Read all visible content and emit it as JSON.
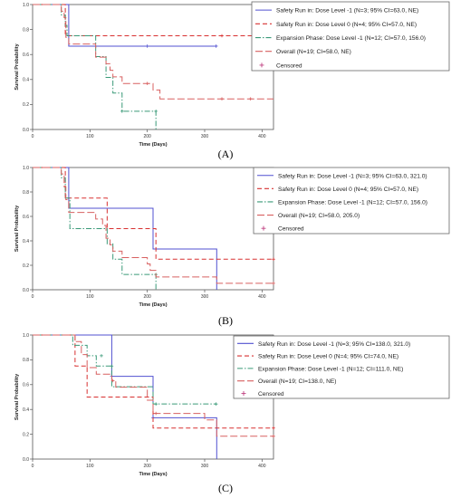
{
  "figure": {
    "panel_labels": [
      "(A)",
      "(B)",
      "(C)"
    ]
  },
  "chart_data": [
    {
      "type": "line",
      "panel": "(A)",
      "xlabel": "Time (Days)",
      "ylabel": "Survival Probability",
      "xlim": [
        0,
        420
      ],
      "ylim": [
        0,
        1.0
      ],
      "xticks": [
        0,
        100,
        200,
        300,
        400
      ],
      "yticks": [
        0.0,
        0.2,
        0.4,
        0.6,
        0.8,
        1.0
      ],
      "grid": false,
      "legend_position": "top-right",
      "censored_label": "Censored",
      "series": [
        {
          "name": "Safety Run in: Dose Level -1 (N=3; 95% CI=63.0, NE)",
          "color": "#5050d0",
          "dash": "solid",
          "steps": [
            [
              0,
              1.0
            ],
            [
              63,
              0.667
            ],
            [
              320,
              0.667
            ]
          ],
          "censored": [
            [
              200,
              0.667
            ],
            [
              320,
              0.667
            ]
          ]
        },
        {
          "name": "Safety Run in: Dose Level 0 (N=4; 95% CI=57.0, NE)",
          "color": "#d83030",
          "dash": "dash",
          "steps": [
            [
              0,
              1.0
            ],
            [
              57,
              0.75
            ],
            [
              420,
              0.75
            ]
          ],
          "censored": [
            [
              330,
              0.75
            ]
          ]
        },
        {
          "name": "Expansion Phase: Dose Level -1 (N=12; CI=57.0, 156.0)",
          "color": "#3a9a78",
          "dash": "dashdot",
          "steps": [
            [
              0,
              1.0
            ],
            [
              50,
              0.917
            ],
            [
              57,
              0.833
            ],
            [
              60,
              0.75
            ],
            [
              110,
              0.583
            ],
            [
              128,
              0.417
            ],
            [
              140,
              0.292
            ],
            [
              156,
              0.146
            ],
            [
              215,
              0.146
            ],
            [
              215,
              0.0
            ]
          ],
          "censored": [
            [
              156,
              0.146
            ],
            [
              215,
              0.146
            ]
          ]
        },
        {
          "name": "Overall  (N=19; CI=58.0, NE)",
          "color": "#d86060",
          "dash": "longdash",
          "steps": [
            [
              0,
              1.0
            ],
            [
              50,
              0.947
            ],
            [
              55,
              0.895
            ],
            [
              58,
              0.737
            ],
            [
              63,
              0.684
            ],
            [
              110,
              0.579
            ],
            [
              128,
              0.526
            ],
            [
              135,
              0.474
            ],
            [
              140,
              0.421
            ],
            [
              156,
              0.368
            ],
            [
              210,
              0.316
            ],
            [
              222,
              0.245
            ],
            [
              420,
              0.245
            ]
          ],
          "censored": [
            [
              200,
              0.368
            ],
            [
              330,
              0.245
            ],
            [
              380,
              0.245
            ]
          ]
        }
      ]
    },
    {
      "type": "line",
      "panel": "(B)",
      "xlabel": "Time (Days)",
      "ylabel": "Survival Probability",
      "xlim": [
        0,
        420
      ],
      "ylim": [
        0,
        1.0
      ],
      "xticks": [
        0,
        100,
        200,
        300,
        400
      ],
      "yticks": [
        0.0,
        0.2,
        0.4,
        0.6,
        0.8,
        1.0
      ],
      "grid": false,
      "legend_position": "top-right",
      "censored_label": "Censored",
      "series": [
        {
          "name": "Safety Run in: Dose Level -1 (N=3; 95% CI=63.0, 321.0)",
          "color": "#5050d0",
          "dash": "solid",
          "steps": [
            [
              0,
              1.0
            ],
            [
              63,
              0.667
            ],
            [
              210,
              0.333
            ],
            [
              321,
              0.0
            ]
          ],
          "censored": []
        },
        {
          "name": "Safety Run in: Dose Level 0 (N=4; 95% CI=57.0, NE)",
          "color": "#d83030",
          "dash": "dash",
          "steps": [
            [
              0,
              1.0
            ],
            [
              57,
              0.75
            ],
            [
              130,
              0.5
            ],
            [
              215,
              0.25
            ],
            [
              420,
              0.25
            ]
          ],
          "censored": [
            [
              420,
              0.25
            ]
          ]
        },
        {
          "name": "Expansion Phase: Dose Level -1 (N=12; CI=57.0, 156.0)",
          "color": "#3a9a78",
          "dash": "dashdot",
          "steps": [
            [
              0,
              1.0
            ],
            [
              50,
              0.917
            ],
            [
              57,
              0.75
            ],
            [
              65,
              0.5
            ],
            [
              110,
              0.5
            ],
            [
              130,
              0.375
            ],
            [
              140,
              0.25
            ],
            [
              156,
              0.125
            ],
            [
              215,
              0.125
            ],
            [
              215,
              0.0
            ]
          ],
          "censored": [
            [
              215,
              0.125
            ]
          ]
        },
        {
          "name": "Overall  (N=19; CI=58.0, 205.0)",
          "color": "#d86060",
          "dash": "longdash",
          "steps": [
            [
              0,
              1.0
            ],
            [
              50,
              0.947
            ],
            [
              55,
              0.842
            ],
            [
              58,
              0.737
            ],
            [
              63,
              0.632
            ],
            [
              110,
              0.579
            ],
            [
              122,
              0.526
            ],
            [
              128,
              0.421
            ],
            [
              135,
              0.368
            ],
            [
              140,
              0.316
            ],
            [
              156,
              0.263
            ],
            [
              200,
              0.211
            ],
            [
              205,
              0.158
            ],
            [
              215,
              0.105
            ],
            [
              321,
              0.053
            ],
            [
              420,
              0.053
            ]
          ],
          "censored": [
            [
              420,
              0.053
            ]
          ]
        }
      ]
    },
    {
      "type": "line",
      "panel": "(C)",
      "xlabel": "Time (Days)",
      "ylabel": "Survival Probability",
      "xlim": [
        0,
        420
      ],
      "ylim": [
        0,
        1.0
      ],
      "xticks": [
        0,
        100,
        200,
        300,
        400
      ],
      "yticks": [
        0.0,
        0.2,
        0.4,
        0.6,
        0.8,
        1.0
      ],
      "grid": false,
      "legend_position": "top-right",
      "censored_label": "Censored",
      "series": [
        {
          "name": "Safety Run in: Dose Level -1 (N=3; 95% CI=138.0, 321.0)",
          "color": "#5050d0",
          "dash": "solid",
          "steps": [
            [
              0,
              1.0
            ],
            [
              138,
              0.667
            ],
            [
              210,
              0.333
            ],
            [
              321,
              0.0
            ]
          ],
          "censored": [
            [
              138,
              0.667
            ],
            [
              210,
              0.333
            ]
          ]
        },
        {
          "name": "Safety Run in: Dose Level 0 (N=4; 95% CI=74.0, NE)",
          "color": "#d83030",
          "dash": "dash",
          "steps": [
            [
              0,
              1.0
            ],
            [
              74,
              0.75
            ],
            [
              95,
              0.5
            ],
            [
              210,
              0.25
            ],
            [
              420,
              0.25
            ]
          ],
          "censored": [
            [
              420,
              0.25
            ]
          ]
        },
        {
          "name": "Expansion Phase: Dose Level -1 (N=12; CI=111.0, NE)",
          "color": "#3a9a78",
          "dash": "dashdot",
          "steps": [
            [
              0,
              1.0
            ],
            [
              70,
              0.917
            ],
            [
              95,
              0.833
            ],
            [
              111,
              0.75
            ],
            [
              138,
              0.583
            ],
            [
              210,
              0.444
            ],
            [
              320,
              0.444
            ]
          ],
          "censored": [
            [
              120,
              0.833
            ],
            [
              138,
              0.75
            ],
            [
              215,
              0.444
            ],
            [
              320,
              0.444
            ]
          ]
        },
        {
          "name": "Overall  (N=19; CI=138.0, NE)",
          "color": "#d86060",
          "dash": "longdash",
          "steps": [
            [
              0,
              1.0
            ],
            [
              74,
              0.947
            ],
            [
              85,
              0.842
            ],
            [
              95,
              0.737
            ],
            [
              111,
              0.684
            ],
            [
              138,
              0.632
            ],
            [
              145,
              0.579
            ],
            [
              200,
              0.474
            ],
            [
              210,
              0.368
            ],
            [
              300,
              0.316
            ],
            [
              321,
              0.184
            ],
            [
              420,
              0.184
            ]
          ],
          "censored": [
            [
              140,
              0.632
            ],
            [
              215,
              0.368
            ],
            [
              420,
              0.184
            ]
          ]
        }
      ]
    }
  ]
}
